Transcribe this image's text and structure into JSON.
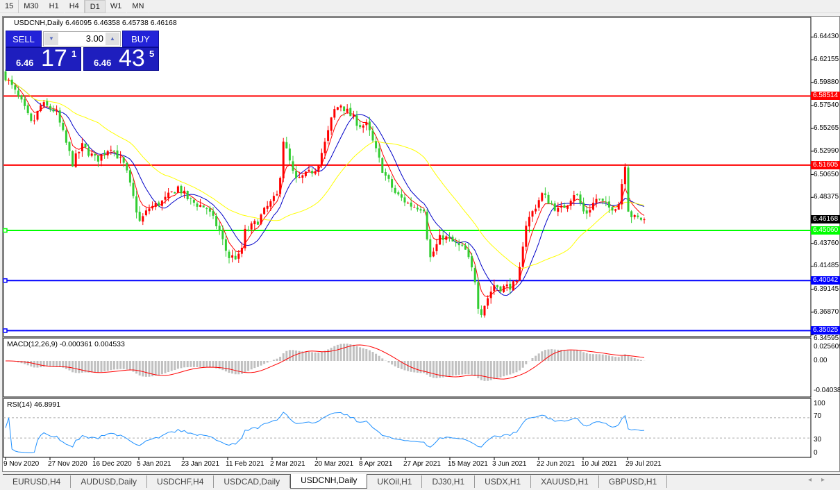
{
  "timeframes": [
    "15",
    "M30",
    "H1",
    "H4",
    "D1",
    "W1",
    "MN"
  ],
  "active_timeframe": "D1",
  "chart": {
    "header": "USDCNH,Daily  6.46095 6.46358 6.45738 6.46168"
  },
  "trade_panel": {
    "sell_label": "SELL",
    "buy_label": "BUY",
    "lots": "3.00",
    "sell_price": {
      "prefix": "6.46",
      "big": "17",
      "sup": "1"
    },
    "buy_price": {
      "prefix": "6.46",
      "big": "43",
      "sup": "5"
    }
  },
  "price_axis": [
    "6.64430",
    "6.62155",
    "6.59880",
    "6.57540",
    "6.55265",
    "6.52990",
    "6.50650",
    "6.48375",
    "6.43760",
    "6.41485",
    "6.39145",
    "6.36870",
    "6.34595"
  ],
  "levels": [
    {
      "price": "6.58514",
      "color": "#ff0000"
    },
    {
      "price": "6.51605",
      "color": "#ff0000"
    },
    {
      "price": "6.45060",
      "color": "#00ff00"
    },
    {
      "price": "6.40042",
      "color": "#0000ff"
    },
    {
      "price": "6.35025",
      "color": "#0000ff"
    }
  ],
  "current_price": "6.46168",
  "macd": {
    "label": "MACD(12,26,9) -0.000361 0.004533",
    "axis": [
      "0.025609",
      "0.00",
      "-0.04038"
    ]
  },
  "rsi": {
    "label": "RSI(14) 46.8991",
    "axis": [
      "100",
      "70",
      "30",
      "0"
    ]
  },
  "time_axis": [
    "9 Nov 2020",
    "27 Nov 2020",
    "16 Dec 2020",
    "5 Jan 2021",
    "23 Jan 2021",
    "11 Feb 2021",
    "2 Mar 2021",
    "20 Mar 2021",
    "8 Apr 2021",
    "27 Apr 2021",
    "15 May 2021",
    "3 Jun 2021",
    "22 Jun 2021",
    "10 Jul 2021",
    "29 Jul 2021"
  ],
  "tabs": [
    "EURUSD,H4",
    "AUDUSD,Daily",
    "USDCHF,H4",
    "USDCAD,Daily",
    "USDCNH,Daily",
    "UKOil,H1",
    "DJ30,H1",
    "USDX,H1",
    "XAUUSD,H1",
    "GBPUSD,H1"
  ],
  "active_tab": "USDCNH,Daily",
  "colors": {
    "up_candle": "#ff0000",
    "down_candle": "#32cd32",
    "ma_fast": "#ff0000",
    "ma_mid": "#0000c8",
    "ma_slow": "#ffff00",
    "rsi_line": "#1e90ff",
    "macd_hist": "#c0c0c0",
    "macd_signal": "#ff0000",
    "trade_panel": "#1e1ebe"
  },
  "chart_data": {
    "type": "candlestick",
    "symbol": "USDCNH",
    "timeframe": "Daily",
    "last_bar": {
      "open": 6.46095,
      "high": 6.46358,
      "low": 6.45738,
      "close": 6.46168
    },
    "ylim": [
      6.34595,
      6.6443
    ],
    "close_path": [
      {
        "date": "2020-11-09",
        "close": 6.605
      },
      {
        "date": "2020-11-16",
        "close": 6.577
      },
      {
        "date": "2020-11-20",
        "close": 6.556
      },
      {
        "date": "2020-11-24",
        "close": 6.577
      },
      {
        "date": "2020-11-30",
        "close": 6.57
      },
      {
        "date": "2020-12-07",
        "close": 6.518
      },
      {
        "date": "2020-12-11",
        "close": 6.535
      },
      {
        "date": "2020-12-17",
        "close": 6.521
      },
      {
        "date": "2020-12-23",
        "close": 6.535
      },
      {
        "date": "2020-12-29",
        "close": 6.514
      },
      {
        "date": "2021-01-04",
        "close": 6.459
      },
      {
        "date": "2021-01-08",
        "close": 6.473
      },
      {
        "date": "2021-01-14",
        "close": 6.48
      },
      {
        "date": "2021-01-20",
        "close": 6.494
      },
      {
        "date": "2021-01-25",
        "close": 6.48
      },
      {
        "date": "2021-02-01",
        "close": 6.473
      },
      {
        "date": "2021-02-06",
        "close": 6.452
      },
      {
        "date": "2021-02-10",
        "close": 6.424
      },
      {
        "date": "2021-02-15",
        "close": 6.424
      },
      {
        "date": "2021-02-17",
        "close": 6.449
      },
      {
        "date": "2021-02-22",
        "close": 6.459
      },
      {
        "date": "2021-02-26",
        "close": 6.473
      },
      {
        "date": "2021-03-03",
        "close": 6.487
      },
      {
        "date": "2021-03-05",
        "close": 6.542
      },
      {
        "date": "2021-03-10",
        "close": 6.5
      },
      {
        "date": "2021-03-16",
        "close": 6.508
      },
      {
        "date": "2021-03-19",
        "close": 6.514
      },
      {
        "date": "2021-03-23",
        "close": 6.542
      },
      {
        "date": "2021-03-26",
        "close": 6.57
      },
      {
        "date": "2021-03-29",
        "close": 6.577
      },
      {
        "date": "2021-04-02",
        "close": 6.566
      },
      {
        "date": "2021-04-06",
        "close": 6.556
      },
      {
        "date": "2021-04-09",
        "close": 6.556
      },
      {
        "date": "2021-04-12",
        "close": 6.535
      },
      {
        "date": "2021-04-16",
        "close": 6.508
      },
      {
        "date": "2021-04-21",
        "close": 6.487
      },
      {
        "date": "2021-04-27",
        "close": 6.476
      },
      {
        "date": "2021-05-03",
        "close": 6.473
      },
      {
        "date": "2021-05-05",
        "close": 6.421
      },
      {
        "date": "2021-05-10",
        "close": 6.445
      },
      {
        "date": "2021-05-13",
        "close": 6.442
      },
      {
        "date": "2021-05-17",
        "close": 6.435
      },
      {
        "date": "2021-05-20",
        "close": 6.431
      },
      {
        "date": "2021-05-24",
        "close": 6.403
      },
      {
        "date": "2021-05-26",
        "close": 6.365
      },
      {
        "date": "2021-05-28",
        "close": 6.376
      },
      {
        "date": "2021-06-01",
        "close": 6.396
      },
      {
        "date": "2021-06-04",
        "close": 6.393
      },
      {
        "date": "2021-06-09",
        "close": 6.396
      },
      {
        "date": "2021-06-11",
        "close": 6.396
      },
      {
        "date": "2021-06-14",
        "close": 6.455
      },
      {
        "date": "2021-06-18",
        "close": 6.473
      },
      {
        "date": "2021-06-21",
        "close": 6.487
      },
      {
        "date": "2021-06-28",
        "close": 6.47
      },
      {
        "date": "2021-07-01",
        "close": 6.476
      },
      {
        "date": "2021-07-05",
        "close": 6.49
      },
      {
        "date": "2021-07-09",
        "close": 6.466
      },
      {
        "date": "2021-07-14",
        "close": 6.483
      },
      {
        "date": "2021-07-19",
        "close": 6.473
      },
      {
        "date": "2021-07-23",
        "close": 6.476
      },
      {
        "date": "2021-07-26",
        "close": 6.521
      },
      {
        "date": "2021-07-27",
        "close": 6.473
      },
      {
        "date": "2021-07-29",
        "close": 6.463
      },
      {
        "date": "2021-08-03",
        "close": 6.46168
      }
    ]
  }
}
